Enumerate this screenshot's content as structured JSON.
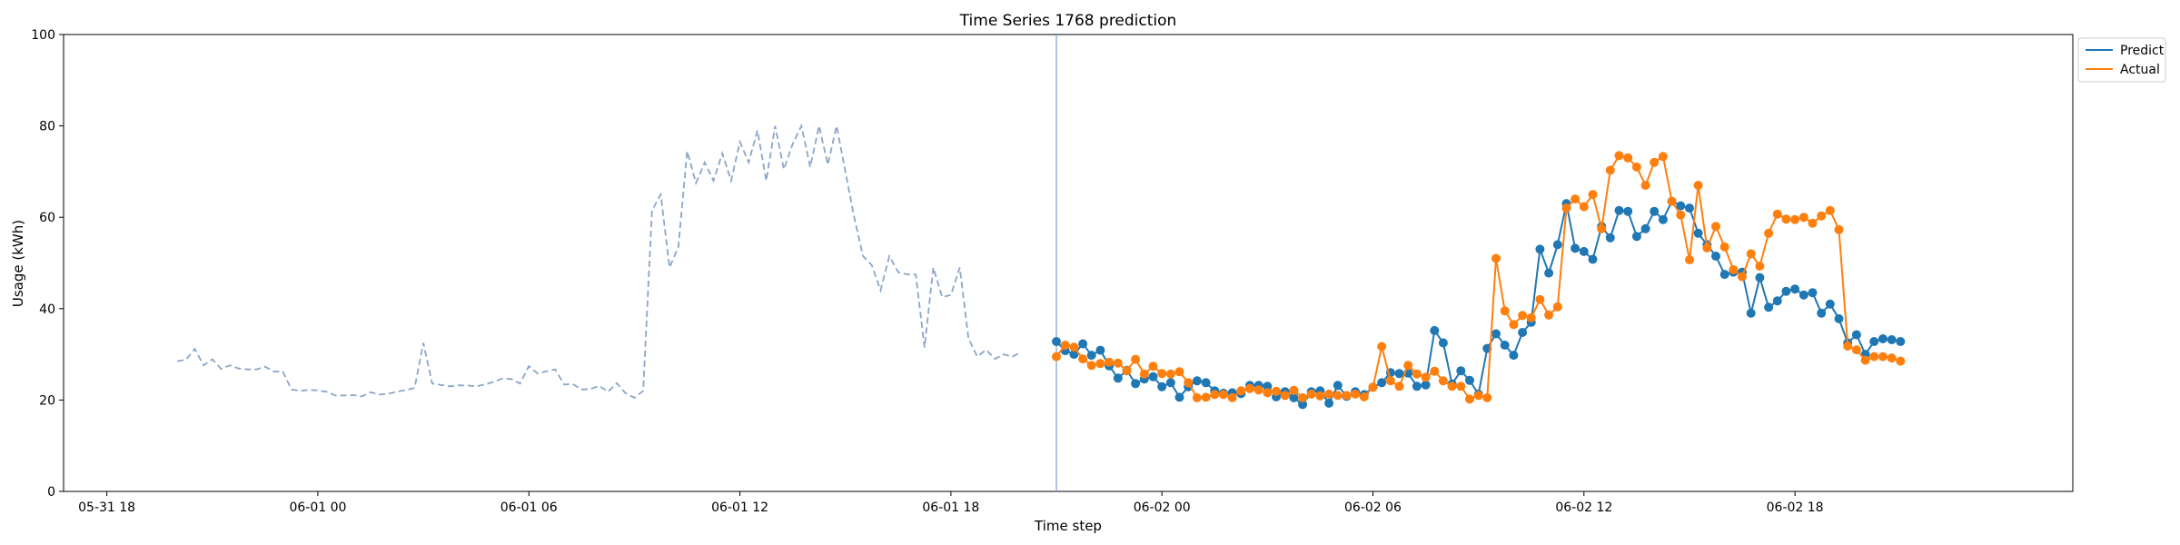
{
  "chart_data": {
    "type": "line",
    "title": "Time Series 1768 prediction",
    "xlabel": "Time step",
    "ylabel": "Usage (kWh)",
    "ylim": [
      0,
      100
    ],
    "yticks": [
      0,
      20,
      40,
      60,
      80,
      100
    ],
    "xticks": [
      "05-31 18",
      "06-01 00",
      "06-01 06",
      "06-01 12",
      "06-01 18",
      "06-02 00",
      "06-02 06",
      "06-02 12",
      "06-02 18"
    ],
    "x_start": "2024-05-31 20:00",
    "step_minutes": 15,
    "grid": false,
    "legend_position": "top-right outside",
    "forecast_start": "06-01 21",
    "colors": {
      "history": "#8aa6c8",
      "predict": "#1f77b4",
      "actual": "#ff7f0e",
      "divider": "#7f9fd0"
    },
    "history": {
      "start": "2024-05-31 20:00",
      "values": [
        28.5,
        28.8,
        31.2,
        27.6,
        28.9,
        26.8,
        27.6,
        26.9,
        26.7,
        26.7,
        27.3,
        26.2,
        26.3,
        22.3,
        22.0,
        22.2,
        22.1,
        21.8,
        21.0,
        21.0,
        21.1,
        20.8,
        21.7,
        21.2,
        21.4,
        21.8,
        22.2,
        22.6,
        32.5,
        23.6,
        23.3,
        23.0,
        23.2,
        23.2,
        23.0,
        23.4,
        24.0,
        24.7,
        24.6,
        23.6,
        27.4,
        25.8,
        26.3,
        26.7,
        23.4,
        23.5,
        22.3,
        22.4,
        23.1,
        21.8,
        23.7,
        21.5,
        20.5,
        22.0,
        61.5,
        65.0,
        49.0,
        53.5,
        74.5,
        67.5,
        72.0,
        68.0,
        74.0,
        68.0,
        76.5,
        72.0,
        79.0,
        68.0,
        80.0,
        70.5,
        76.0,
        80.0,
        71.0,
        80.0,
        71.5,
        80.0,
        70.0,
        60.0,
        51.5,
        49.5,
        44.0,
        51.5,
        48.0,
        47.5,
        47.5,
        31.5,
        49.0,
        42.5,
        43.0,
        49.0,
        33.5,
        29.5,
        31.0,
        29.0,
        30.0,
        29.5,
        30.5
      ]
    },
    "series": [
      {
        "name": "Predict",
        "start": "2024-06-01 21:00",
        "values": [
          32.8,
          30.8,
          30.0,
          32.3,
          29.8,
          30.9,
          27.5,
          24.8,
          26.5,
          23.6,
          24.6,
          25.1,
          22.9,
          23.8,
          20.6,
          22.9,
          24.2,
          23.8,
          22.0,
          21.5,
          21.6,
          21.4,
          23.2,
          23.2,
          23.0,
          20.7,
          21.8,
          20.5,
          19.0,
          21.8,
          22.0,
          19.3,
          23.2,
          20.8,
          21.8,
          21.2,
          22.8,
          23.8,
          26.0,
          25.8,
          25.9,
          23.0,
          23.3,
          35.2,
          32.5,
          23.5,
          26.4,
          24.3,
          21.3,
          31.3,
          34.5,
          32.0,
          29.8,
          34.8,
          37.0,
          53.0,
          47.8,
          54.0,
          63.0,
          53.2,
          52.5,
          50.8,
          58.0,
          55.5,
          61.5,
          61.3,
          55.8,
          57.5,
          61.3,
          59.5,
          63.5,
          62.5,
          62.0,
          56.5,
          54.0,
          51.5,
          47.5,
          48.0,
          48.0,
          39.0,
          46.8,
          40.3,
          41.7,
          43.8,
          44.3,
          43.0,
          43.5,
          39.0,
          41.0,
          37.8,
          32.5,
          34.3,
          30.0,
          32.8,
          33.4,
          33.2,
          32.8
        ]
      },
      {
        "name": "Actual",
        "start": "2024-06-01 21:00",
        "values": [
          29.5,
          32.0,
          31.6,
          29.0,
          27.6,
          28.0,
          28.3,
          28.1,
          26.4,
          28.9,
          25.7,
          27.4,
          25.8,
          25.7,
          26.2,
          23.8,
          20.5,
          20.6,
          21.2,
          21.2,
          20.5,
          22.0,
          22.5,
          22.2,
          21.6,
          21.9,
          21.0,
          22.1,
          20.5,
          21.3,
          20.9,
          21.3,
          21.0,
          21.0,
          21.3,
          20.7,
          22.8,
          31.7,
          24.2,
          23.0,
          27.6,
          25.7,
          25.0,
          26.3,
          24.2,
          23.0,
          23.0,
          20.2,
          21.0,
          20.5,
          51.0,
          39.5,
          36.5,
          38.5,
          38.0,
          42.0,
          38.6,
          40.4,
          62.0,
          64.0,
          62.3,
          65.0,
          57.5,
          70.3,
          73.5,
          73.0,
          71.0,
          67.0,
          72.0,
          73.3,
          63.5,
          60.5,
          50.7,
          67.0,
          53.3,
          58.0,
          53.5,
          48.5,
          47.0,
          52.0,
          49.3,
          56.5,
          60.7,
          59.6,
          59.5,
          60.0,
          58.7,
          60.3,
          61.5,
          57.3,
          31.8,
          31.0,
          28.7,
          29.5,
          29.5,
          29.2,
          28.5
        ]
      }
    ]
  }
}
